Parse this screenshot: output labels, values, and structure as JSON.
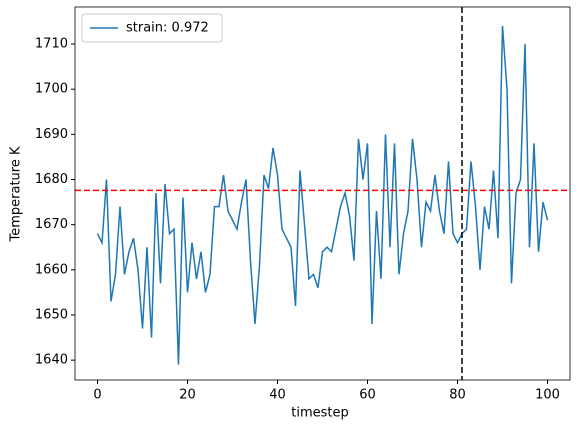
{
  "chart_data": {
    "type": "line",
    "xlabel": "timestep",
    "ylabel": "Temperature K",
    "x": [
      0,
      1,
      2,
      3,
      4,
      5,
      6,
      7,
      8,
      9,
      10,
      11,
      12,
      13,
      14,
      15,
      16,
      17,
      18,
      19,
      20,
      21,
      22,
      23,
      24,
      25,
      26,
      27,
      28,
      29,
      30,
      31,
      32,
      33,
      34,
      35,
      36,
      37,
      38,
      39,
      40,
      41,
      42,
      43,
      44,
      45,
      46,
      47,
      48,
      49,
      50,
      51,
      52,
      53,
      54,
      55,
      56,
      57,
      58,
      59,
      60,
      61,
      62,
      63,
      64,
      65,
      66,
      67,
      68,
      69,
      70,
      71,
      72,
      73,
      74,
      75,
      76,
      77,
      78,
      79,
      80,
      81,
      82,
      83,
      84,
      85,
      86,
      87,
      88,
      89,
      90,
      91,
      92,
      93,
      94,
      95,
      96,
      97,
      98,
      99,
      100
    ],
    "series": [
      {
        "name": "strain: 0.972",
        "color": "#1f77b4",
        "values": [
          1668,
          1666,
          1680,
          1653,
          1659,
          1674,
          1659,
          1664,
          1667,
          1660,
          1647,
          1665,
          1645,
          1677,
          1657,
          1679,
          1668,
          1669,
          1639,
          1676,
          1655,
          1666,
          1658,
          1664,
          1655,
          1659,
          1674,
          1674,
          1681,
          1673,
          1671,
          1669,
          1675,
          1680,
          1662,
          1648,
          1661,
          1681,
          1678,
          1687,
          1681,
          1669,
          1667,
          1665,
          1652,
          1682,
          1670,
          1658,
          1659,
          1656,
          1664,
          1665,
          1664,
          1669,
          1674,
          1677,
          1672,
          1662,
          1689,
          1680,
          1688,
          1648,
          1673,
          1658,
          1690,
          1665,
          1688,
          1659,
          1668,
          1673,
          1689,
          1680,
          1665,
          1675,
          1673,
          1681,
          1673,
          1668,
          1684,
          1668,
          1666,
          1668,
          1669,
          1684,
          1674,
          1660,
          1674,
          1669,
          1682,
          1667,
          1714,
          1700,
          1657,
          1677,
          1680,
          1710,
          1665,
          1688,
          1664,
          1675,
          1671
        ]
      }
    ],
    "hlines": [
      {
        "y": 1677.6,
        "color": "#ff0000"
      }
    ],
    "vlines": [
      {
        "x": 81,
        "color": "#000000"
      }
    ],
    "xlim": [
      -5,
      105
    ],
    "ylim": [
      1635.6,
      1718.2
    ],
    "xticks": [
      0,
      20,
      40,
      60,
      80,
      100
    ],
    "yticks": [
      1640,
      1650,
      1660,
      1670,
      1680,
      1690,
      1700,
      1710
    ],
    "legend": "upper left"
  }
}
